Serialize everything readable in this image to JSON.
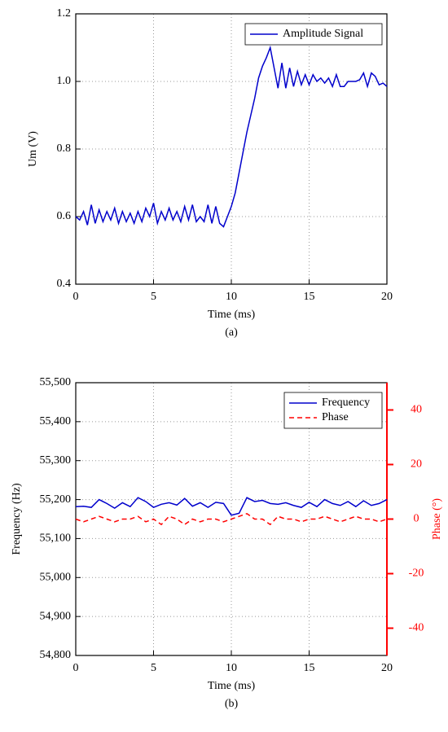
{
  "chart_data": [
    {
      "type": "line",
      "xlabel": "Time (ms)",
      "ylabel": "Um (V)",
      "caption": "(a)",
      "x": [
        0,
        0.25,
        0.5,
        0.75,
        1,
        1.25,
        1.5,
        1.75,
        2,
        2.25,
        2.5,
        2.75,
        3,
        3.25,
        3.5,
        3.75,
        4,
        4.25,
        4.5,
        4.75,
        5,
        5.25,
        5.5,
        5.75,
        6,
        6.25,
        6.5,
        6.75,
        7,
        7.25,
        7.5,
        7.75,
        8,
        8.25,
        8.5,
        8.75,
        9,
        9.25,
        9.5,
        9.75,
        10,
        10.25,
        10.5,
        10.75,
        11,
        11.25,
        11.5,
        11.75,
        12,
        12.25,
        12.5,
        12.75,
        13,
        13.25,
        13.5,
        13.75,
        14,
        14.25,
        14.5,
        14.75,
        15,
        15.25,
        15.5,
        15.75,
        16,
        16.25,
        16.5,
        16.75,
        17,
        17.25,
        17.5,
        17.75,
        18,
        18.25,
        18.5,
        18.75,
        19,
        19.25,
        19.5,
        19.75,
        20
      ],
      "series": [
        {
          "name": "Amplitude Signal",
          "color": "#0000cc",
          "linestyle": "solid",
          "values": [
            0.6,
            0.59,
            0.615,
            0.575,
            0.635,
            0.58,
            0.62,
            0.585,
            0.615,
            0.59,
            0.625,
            0.58,
            0.615,
            0.585,
            0.61,
            0.58,
            0.615,
            0.585,
            0.625,
            0.6,
            0.64,
            0.58,
            0.615,
            0.59,
            0.625,
            0.59,
            0.615,
            0.585,
            0.63,
            0.59,
            0.635,
            0.585,
            0.6,
            0.585,
            0.635,
            0.58,
            0.63,
            0.58,
            0.57,
            0.6,
            0.63,
            0.67,
            0.73,
            0.79,
            0.85,
            0.9,
            0.95,
            1.01,
            1.045,
            1.07,
            1.1,
            1.04,
            0.98,
            1.055,
            0.98,
            1.04,
            0.985,
            1.03,
            0.99,
            1.02,
            0.99,
            1.02,
            1.0,
            1.01,
            0.995,
            1.01,
            0.985,
            1.02,
            0.985,
            0.985,
            1.0,
            1.0,
            1.0,
            1.005,
            1.025,
            0.985,
            1.025,
            1.015,
            0.99,
            0.995,
            0.985
          ]
        }
      ],
      "xlim": [
        0,
        20
      ],
      "xticks": [
        0,
        5,
        10,
        15,
        20
      ],
      "ylim": [
        0.4,
        1.2
      ],
      "yticks": [
        0.4,
        0.6,
        0.8,
        {
          "value": 1,
          "label": "1.0"
        },
        1.2
      ],
      "grid": true,
      "legend": "upper right"
    },
    {
      "type": "line",
      "xlabel": "Time (ms)",
      "ylabel": "Frequency (Hz)",
      "y2label": "Phase (°)",
      "caption": "(b)",
      "x": [
        0,
        0.5,
        1,
        1.5,
        2,
        2.5,
        3,
        3.5,
        4,
        4.5,
        5,
        5.5,
        6,
        6.5,
        7,
        7.5,
        8,
        8.5,
        9,
        9.5,
        10,
        10.5,
        11,
        11.5,
        12,
        12.5,
        13,
        13.5,
        14,
        14.5,
        15,
        15.5,
        16,
        16.5,
        17,
        17.5,
        18,
        18.5,
        19,
        19.5,
        20
      ],
      "series": [
        {
          "name": "Frequency",
          "color": "#0000cc",
          "linestyle": "solid",
          "axis": "y",
          "values": [
            55182,
            55183,
            55180,
            55200,
            55190,
            55178,
            55192,
            55182,
            55205,
            55195,
            55180,
            55188,
            55192,
            55186,
            55203,
            55183,
            55192,
            55180,
            55193,
            55190,
            55160,
            55165,
            55205,
            55195,
            55198,
            55190,
            55188,
            55192,
            55185,
            55180,
            55193,
            55182,
            55200,
            55190,
            55185,
            55195,
            55182,
            55197,
            55185,
            55190,
            55200
          ]
        },
        {
          "name": "Phase",
          "color": "#ff0000",
          "linestyle": "dashed",
          "axis": "y2",
          "values": [
            0,
            -1,
            0,
            1,
            0,
            -1,
            0,
            0,
            1,
            -1,
            0,
            -2,
            1,
            0,
            -2,
            0,
            -1,
            0,
            0,
            -1,
            0,
            1,
            2,
            0,
            0,
            -2,
            1,
            0,
            0,
            -1,
            0,
            0,
            1,
            0,
            -1,
            0,
            1,
            0,
            0,
            -1,
            0
          ]
        }
      ],
      "xlim": [
        0,
        20
      ],
      "xticks": [
        0,
        5,
        10,
        15,
        20
      ],
      "ylim": [
        54800,
        55500
      ],
      "yticks": [
        {
          "value": 54800,
          "label": "54,800"
        },
        {
          "value": 54900,
          "label": "54,900"
        },
        {
          "value": 55000,
          "label": "55,000"
        },
        {
          "value": 55100,
          "label": "55,100"
        },
        {
          "value": 55200,
          "label": "55,200"
        },
        {
          "value": 55300,
          "label": "55,300"
        },
        {
          "value": 55400,
          "label": "55,400"
        },
        {
          "value": 55500,
          "label": "55,500"
        }
      ],
      "y2lim": [
        -50,
        50
      ],
      "y2ticks": [
        -40,
        -20,
        0,
        20,
        40
      ],
      "y2color": "#ff0000",
      "grid": true,
      "legend": "upper right"
    }
  ]
}
